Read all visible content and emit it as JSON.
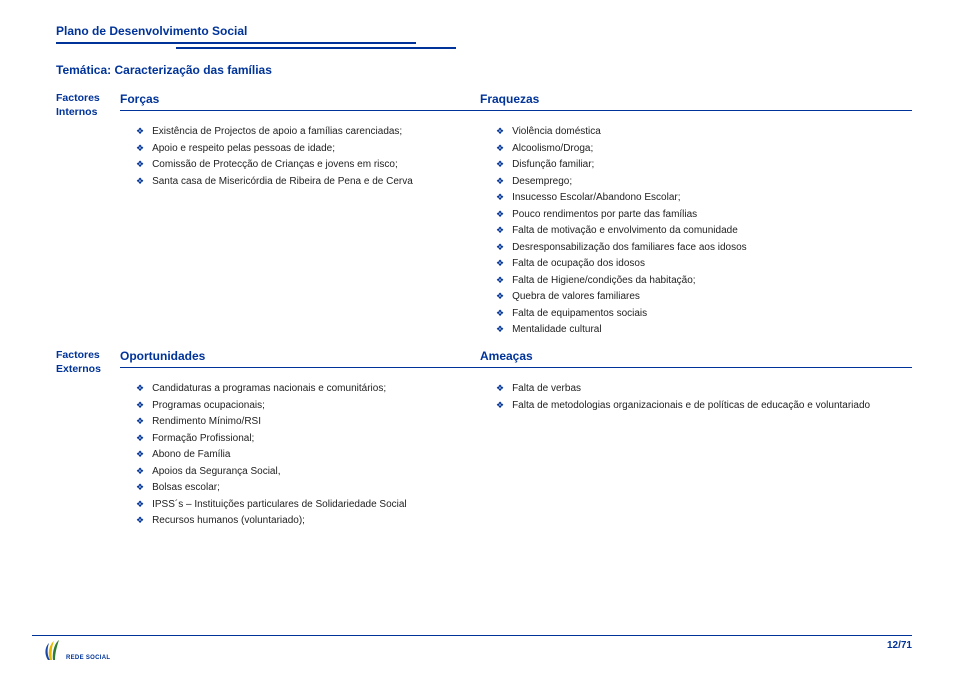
{
  "doc": {
    "title": "Plano de Desenvolvimento Social",
    "tematica_label": "Temática:",
    "tematica_value": "Caracterização das famílias",
    "page_number": "12/71",
    "logo_text": "REDE SOCIAL"
  },
  "colors": {
    "brand": "#003399",
    "text": "#222222",
    "bg": "#ffffff"
  },
  "typography": {
    "body_fontsize_pt": 8,
    "header_fontsize_pt": 10,
    "title_fontsize_pt": 10
  },
  "swot": {
    "internos_label": "Factores Internos",
    "externos_label": "Factores Externos",
    "forcas": {
      "header": "Forças",
      "items": [
        "Existência de Projectos de apoio a famílias carenciadas;",
        "Apoio e respeito pelas pessoas de idade;",
        "Comissão de Protecção de Crianças e jovens em risco;",
        "Santa casa de Misericórdia de Ribeira de Pena e de Cerva"
      ]
    },
    "fraquezas": {
      "header": "Fraquezas",
      "items": [
        "Violência doméstica",
        "Alcoolismo/Droga;",
        "Disfunção familiar;",
        "Desemprego;",
        "Insucesso Escolar/Abandono Escolar;",
        "Pouco rendimentos por parte das famílias",
        "Falta de motivação e envolvimento da comunidade",
        "Desresponsabilização dos familiares face aos idosos",
        "Falta de ocupação dos idosos",
        "Falta de Higiene/condições da habitação;",
        "Quebra de valores familiares",
        "Falta de equipamentos sociais",
        "Mentalidade cultural"
      ]
    },
    "oportunidades": {
      "header": "Oportunidades",
      "items": [
        "Candidaturas a programas nacionais e comunitários;",
        "Programas ocupacionais;",
        "Rendimento Mínimo/RSI",
        "Formação Profissional;",
        "Abono de Família",
        "Apoios da Segurança Social,",
        "Bolsas escolar;",
        "IPSS´s – Instituições particulares de Solidariedade Social",
        "Recursos humanos (voluntariado);"
      ]
    },
    "ameacas": {
      "header": "Ameaças",
      "items": [
        "Falta de verbas",
        "Falta de metodologias organizacionais e de políticas de educação e voluntariado"
      ]
    }
  }
}
